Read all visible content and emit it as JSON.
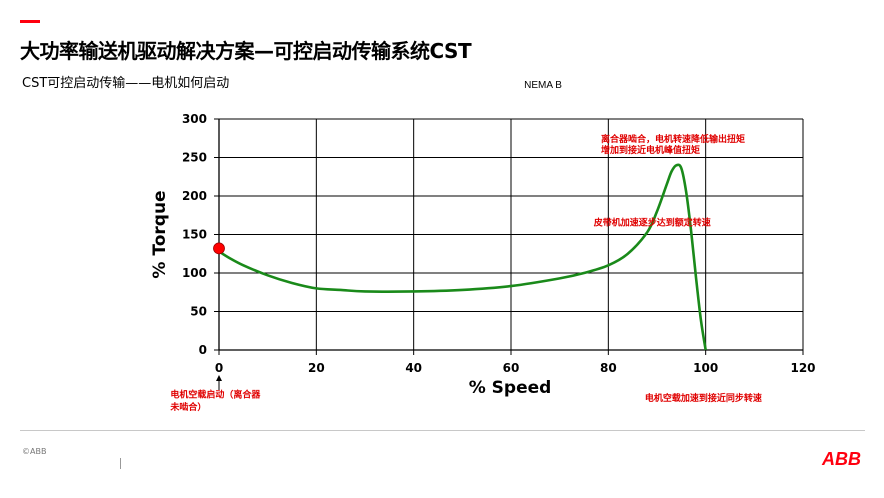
{
  "header": {
    "title": "大功率输送机驱动解决方案—可控启动传输系统CST",
    "subtitle": "CST可控启动传输——电机如何启动"
  },
  "footer": {
    "copyright": "©ABB",
    "logo": "ABB"
  },
  "colors": {
    "accent": "#ff000f",
    "curve": "#1a8a1a",
    "annotation": "#e00000",
    "marker": "#ff0000"
  },
  "chart_data": {
    "type": "line",
    "title": "NEMA B",
    "xlabel": "% Speed",
    "ylabel": "% Torque",
    "xlim": [
      0,
      120
    ],
    "ylim": [
      0,
      300
    ],
    "xticks": [
      0,
      20,
      40,
      60,
      80,
      100,
      120
    ],
    "yticks": [
      0,
      50,
      100,
      150,
      200,
      250,
      300
    ],
    "grid": true,
    "series": [
      {
        "x": [
          0,
          2,
          5,
          10,
          15,
          20,
          25,
          30,
          40,
          50,
          60,
          70,
          75,
          80,
          84,
          88,
          90,
          92,
          93,
          94,
          95,
          96,
          97,
          98,
          99,
          100
        ],
        "y": [
          128,
          120,
          110,
          97,
          87,
          80,
          78,
          76,
          76,
          78,
          83,
          93,
          100,
          110,
          125,
          153,
          180,
          215,
          232,
          240,
          236,
          205,
          155,
          95,
          40,
          0
        ]
      }
    ],
    "marker": {
      "x": 0,
      "y": 132
    },
    "annotations": [
      {
        "text": "离合器啮合，电机转速降低输出扭矩",
        "x": 78.5,
        "y": 270
      },
      {
        "text": "增加到接近电机峰值扭矩",
        "x": 78.5,
        "y": 256
      },
      {
        "text": "皮带机加速逐步达到额定转速",
        "x": 77,
        "y": 162
      },
      {
        "text": "电机空载启动（离合器",
        "x": -10,
        "y": -62
      },
      {
        "text": "未啮合）",
        "x": -10,
        "y": -78
      },
      {
        "text": "电机空载加速到接近同步转速",
        "x": 87.5,
        "y": -66
      }
    ]
  }
}
